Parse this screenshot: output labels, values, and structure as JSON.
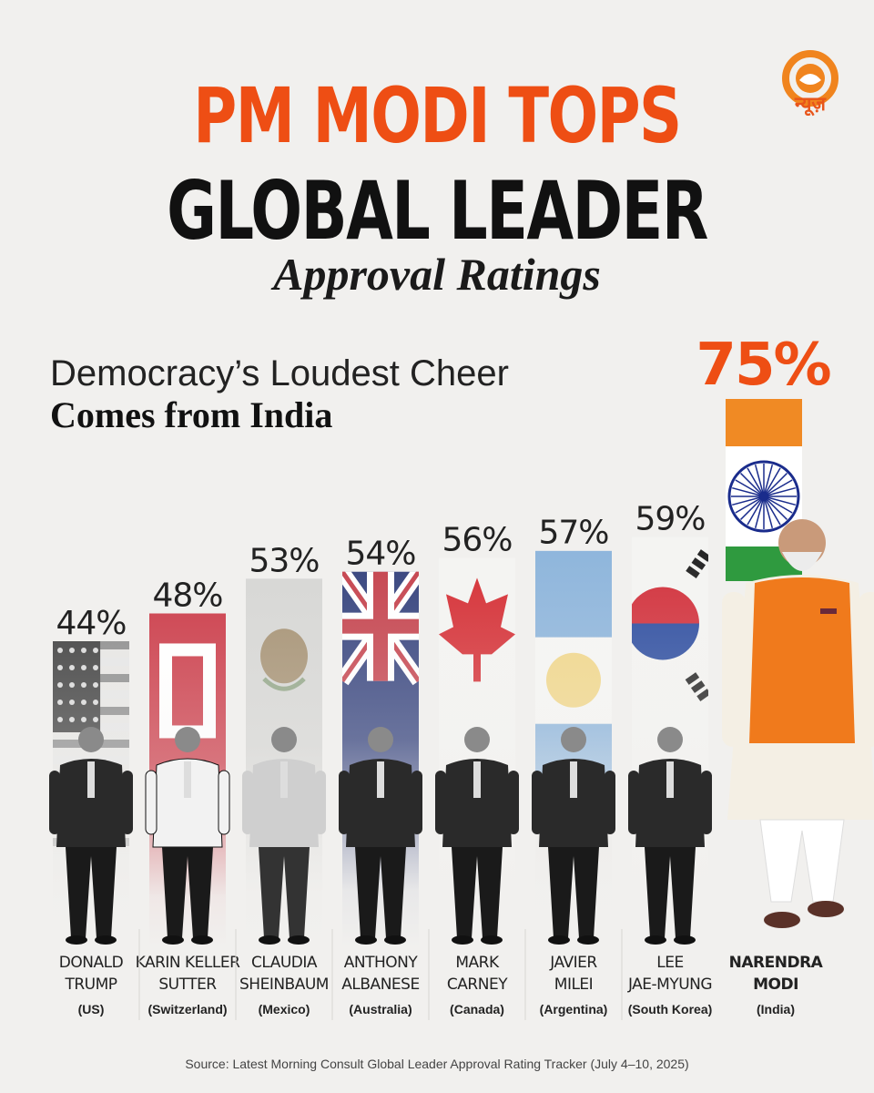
{
  "header": {
    "title_line1": "PM MODI TOPS",
    "title_line2": "GLOBAL LEADER",
    "title_line3": "Approval Ratings",
    "subtitle_line1": "Democracy’s Loudest Cheer",
    "subtitle_line2": "Comes from India",
    "logo_text": "न्यूज़"
  },
  "footer": {
    "source": "Source: Latest Morning Consult Global Leader Approval Rating Tracker (July 4–10, 2025)"
  },
  "colors": {
    "headline_orange": "#ee4e14",
    "headline_black": "#111111",
    "background": "#f1f0ee",
    "india_saffron": "#f08a24",
    "india_green": "#2f9a3f",
    "chakra_blue": "#1a2c8c"
  },
  "chart_data": {
    "type": "bar",
    "categories": [
      "US",
      "Switzerland",
      "Mexico",
      "Australia",
      "Canada",
      "Argentina",
      "South Korea",
      "India"
    ],
    "names": [
      [
        "DONALD",
        "TRUMP"
      ],
      [
        "KARIN KELLER",
        "SUTTER"
      ],
      [
        "CLAUDIA",
        "SHEINBAUM"
      ],
      [
        "ANTHONY",
        "ALBANESE"
      ],
      [
        "MARK",
        "CARNEY"
      ],
      [
        "JAVIER",
        "MILEI"
      ],
      [
        "LEE",
        "JAE-MYUNG"
      ],
      [
        "NARENDRA",
        "MODI"
      ]
    ],
    "countries": [
      "(US)",
      "(Switzerland)",
      "(Mexico)",
      "(Australia)",
      "(Canada)",
      "(Argentina)",
      "(South Korea)",
      "(India)"
    ],
    "values": [
      44,
      48,
      53,
      54,
      56,
      57,
      59,
      75
    ],
    "labels": [
      "44%",
      "48%",
      "53%",
      "54%",
      "56%",
      "57%",
      "59%",
      "75%"
    ],
    "flags": [
      "us-flag",
      "swiss-flag",
      "mexico-flag",
      "australia-flag",
      "canada-flag",
      "argentina-flag",
      "south-korea-flag",
      "india-flag"
    ],
    "highlight_index": 7,
    "title": "",
    "xlabel": "",
    "ylabel": ""
  }
}
